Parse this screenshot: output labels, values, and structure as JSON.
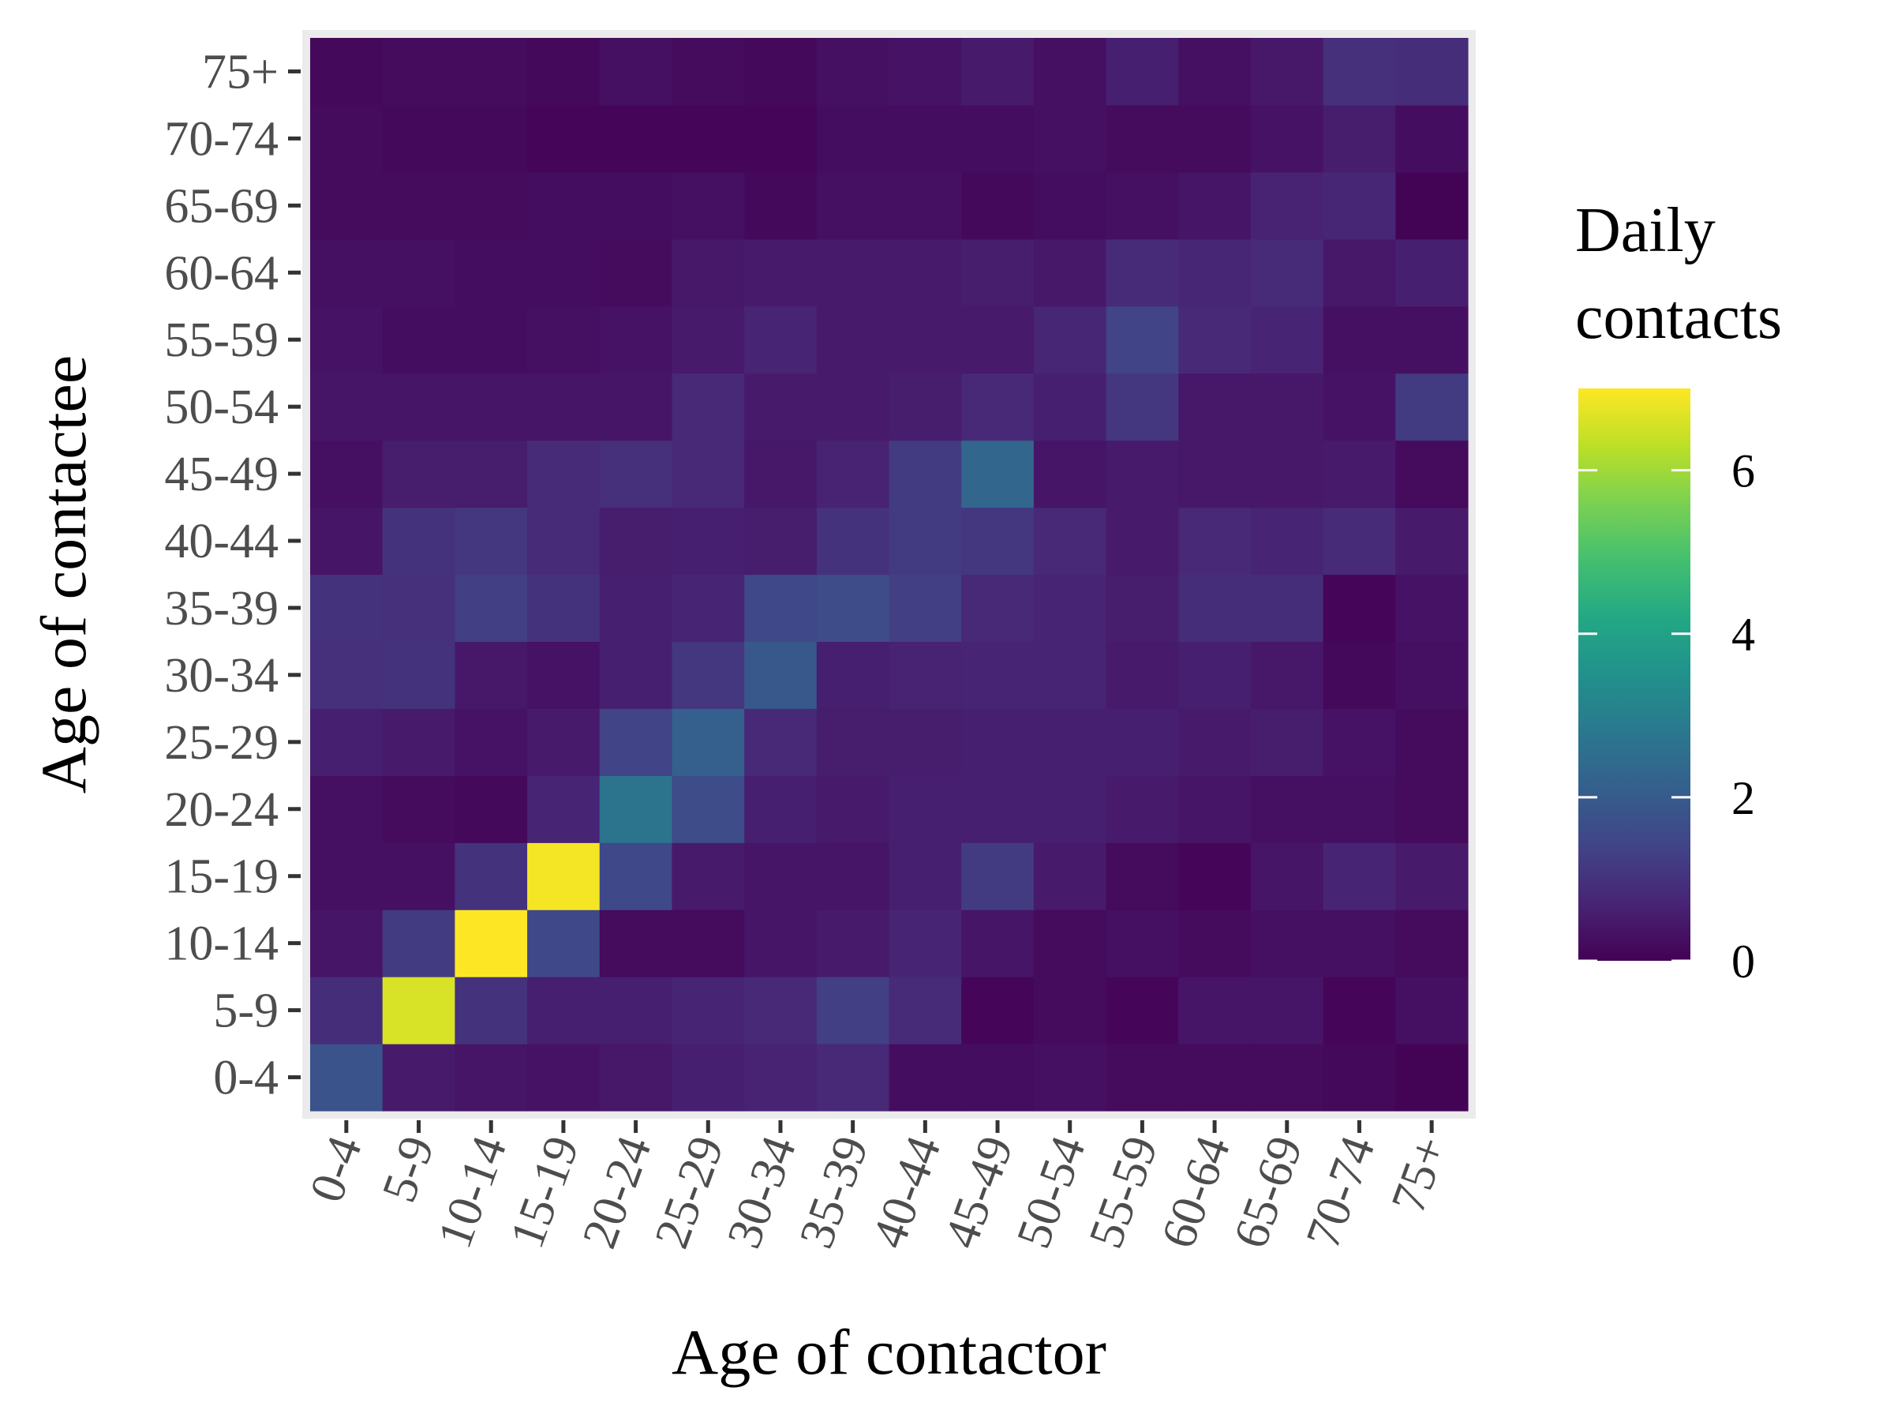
{
  "chart_data": {
    "type": "heatmap",
    "xlabel": "Age of contactor",
    "ylabel": "Age of contactee",
    "x_categories": [
      "0-4",
      "5-9",
      "10-14",
      "15-19",
      "20-24",
      "25-29",
      "30-34",
      "35-39",
      "40-44",
      "45-49",
      "50-54",
      "55-59",
      "60-64",
      "65-69",
      "70-74",
      "75+"
    ],
    "y_categories": [
      "0-4",
      "5-9",
      "10-14",
      "15-19",
      "20-24",
      "25-29",
      "30-34",
      "35-39",
      "40-44",
      "45-49",
      "50-54",
      "55-59",
      "60-64",
      "65-69",
      "70-74",
      "75+"
    ],
    "legend": {
      "title": [
        "Daily",
        "contacts"
      ],
      "range": [
        0,
        7
      ],
      "ticks": [
        0,
        2,
        4,
        6
      ],
      "tick_labels": [
        "0",
        "2",
        "4",
        "6"
      ],
      "position": "right",
      "colormap": "viridis"
    },
    "grid": true,
    "values": [
      [
        1.8,
        0.5,
        0.4,
        0.35,
        0.45,
        0.6,
        0.65,
        0.8,
        0.25,
        0.25,
        0.3,
        0.2,
        0.2,
        0.2,
        0.15,
        0.05
      ],
      [
        0.9,
        6.6,
        1.0,
        0.6,
        0.6,
        0.7,
        0.8,
        1.3,
        0.85,
        0.1,
        0.2,
        0.1,
        0.4,
        0.4,
        0.1,
        0.3
      ],
      [
        0.4,
        1.2,
        7.0,
        1.5,
        0.2,
        0.2,
        0.4,
        0.5,
        0.7,
        0.4,
        0.2,
        0.3,
        0.2,
        0.3,
        0.3,
        0.2
      ],
      [
        0.3,
        0.3,
        1.0,
        6.9,
        1.5,
        0.5,
        0.4,
        0.4,
        0.6,
        1.2,
        0.5,
        0.2,
        0.1,
        0.4,
        0.7,
        0.5
      ],
      [
        0.3,
        0.2,
        0.15,
        0.7,
        2.7,
        1.6,
        0.6,
        0.5,
        0.6,
        0.6,
        0.6,
        0.5,
        0.4,
        0.3,
        0.3,
        0.2
      ],
      [
        0.6,
        0.5,
        0.35,
        0.5,
        1.4,
        2.1,
        0.8,
        0.55,
        0.55,
        0.6,
        0.6,
        0.6,
        0.5,
        0.55,
        0.35,
        0.2
      ],
      [
        0.95,
        1.0,
        0.45,
        0.35,
        0.6,
        1.1,
        1.9,
        0.6,
        0.65,
        0.7,
        0.7,
        0.5,
        0.6,
        0.45,
        0.15,
        0.3
      ],
      [
        1.0,
        0.95,
        1.3,
        1.0,
        0.6,
        0.7,
        1.5,
        1.6,
        1.3,
        0.8,
        0.7,
        0.55,
        0.9,
        0.9,
        0.1,
        0.35
      ],
      [
        0.4,
        1.0,
        1.1,
        0.85,
        0.55,
        0.6,
        0.55,
        1.0,
        1.2,
        1.1,
        0.8,
        0.5,
        0.8,
        0.7,
        0.85,
        0.5
      ],
      [
        0.3,
        0.55,
        0.55,
        0.85,
        0.95,
        0.8,
        0.45,
        0.65,
        1.2,
        2.3,
        0.4,
        0.5,
        0.45,
        0.45,
        0.5,
        0.2
      ],
      [
        0.4,
        0.4,
        0.4,
        0.4,
        0.4,
        0.8,
        0.5,
        0.5,
        0.55,
        0.8,
        0.6,
        1.1,
        0.45,
        0.45,
        0.35,
        1.2
      ],
      [
        0.35,
        0.25,
        0.25,
        0.3,
        0.35,
        0.5,
        0.7,
        0.5,
        0.5,
        0.5,
        0.75,
        1.4,
        0.8,
        0.7,
        0.3,
        0.3
      ],
      [
        0.3,
        0.3,
        0.25,
        0.25,
        0.2,
        0.45,
        0.5,
        0.5,
        0.5,
        0.55,
        0.45,
        0.85,
        0.75,
        0.85,
        0.45,
        0.6
      ],
      [
        0.2,
        0.2,
        0.2,
        0.25,
        0.25,
        0.3,
        0.15,
        0.3,
        0.3,
        0.15,
        0.25,
        0.3,
        0.4,
        0.65,
        0.75,
        0.05
      ],
      [
        0.2,
        0.15,
        0.15,
        0.1,
        0.1,
        0.1,
        0.1,
        0.25,
        0.25,
        0.25,
        0.3,
        0.2,
        0.2,
        0.35,
        0.55,
        0.25
      ],
      [
        0.15,
        0.2,
        0.2,
        0.15,
        0.3,
        0.2,
        0.15,
        0.3,
        0.35,
        0.5,
        0.3,
        0.6,
        0.3,
        0.45,
        0.95,
        0.9
      ]
    ]
  }
}
